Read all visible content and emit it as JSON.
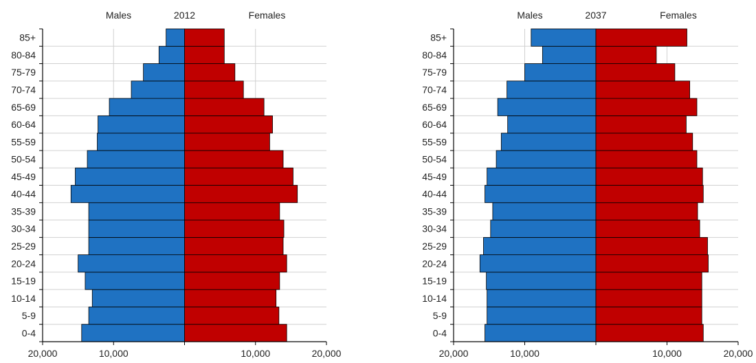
{
  "colors": {
    "male": "#1f72c2",
    "female": "#c00000",
    "grid": "#d0d0d0",
    "axis": "#000000"
  },
  "chart_data": [
    {
      "type": "bar",
      "orientation": "horizontal-pyramid",
      "title": "2012",
      "left_label": "Males",
      "right_label": "Females",
      "categories": [
        "0-4",
        "5-9",
        "10-14",
        "15-19",
        "20-24",
        "25-29",
        "30-34",
        "35-39",
        "40-44",
        "45-49",
        "50-54",
        "55-59",
        "60-64",
        "65-69",
        "70-74",
        "75-79",
        "80-84",
        "85+"
      ],
      "series": [
        {
          "name": "Males",
          "values": [
            14500,
            13500,
            13000,
            14000,
            15000,
            13500,
            13500,
            13500,
            16000,
            15400,
            13700,
            12300,
            12200,
            10600,
            7500,
            5800,
            3600,
            2600
          ]
        },
        {
          "name": "Females",
          "values": [
            14400,
            13300,
            12900,
            13400,
            14400,
            13900,
            14000,
            13400,
            15900,
            15300,
            13900,
            12000,
            12400,
            11200,
            8300,
            7100,
            5600,
            5600
          ]
        }
      ],
      "xlim": [
        -20000,
        20000
      ],
      "ticks": [
        "20,000",
        "10,000",
        "10,000",
        "20,000"
      ],
      "grid": true
    },
    {
      "type": "bar",
      "orientation": "horizontal-pyramid",
      "title": "2037",
      "left_label": "Males",
      "right_label": "Females",
      "categories": [
        "0-4",
        "5-9",
        "10-14",
        "15-19",
        "20-24",
        "25-29",
        "30-34",
        "35-39",
        "40-44",
        "45-49",
        "50-54",
        "55-59",
        "60-64",
        "65-69",
        "70-74",
        "75-79",
        "80-84",
        "85+"
      ],
      "series": [
        {
          "name": "Males",
          "values": [
            15600,
            15300,
            15300,
            15400,
            16300,
            15800,
            14800,
            14500,
            15600,
            15300,
            14000,
            13300,
            12400,
            13800,
            12500,
            10000,
            7500,
            9100
          ]
        },
        {
          "name": "Females",
          "values": [
            15100,
            14900,
            14900,
            14900,
            15800,
            15700,
            14600,
            14300,
            15100,
            15000,
            14200,
            13600,
            12700,
            14200,
            13200,
            11100,
            8500,
            12800
          ]
        }
      ],
      "xlim": [
        -20000,
        20000
      ],
      "ticks": [
        "20,000",
        "10,000",
        "10,000",
        "20,000"
      ],
      "grid": true
    }
  ]
}
